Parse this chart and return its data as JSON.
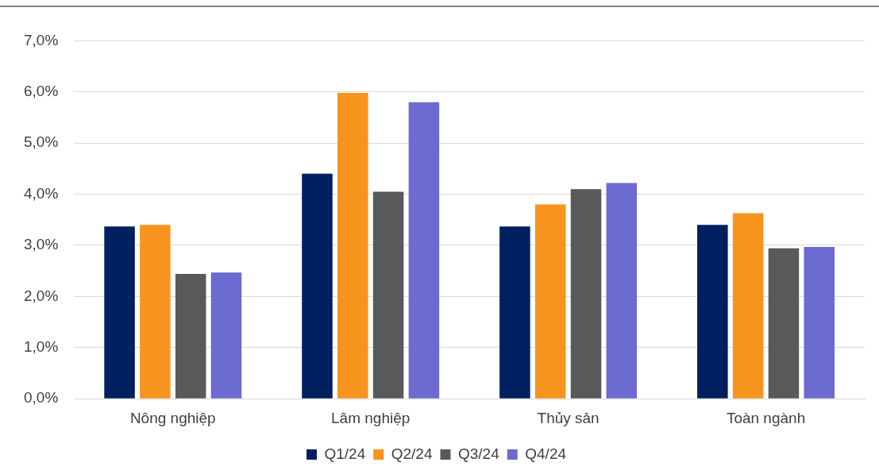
{
  "chart_data": {
    "type": "bar",
    "categories": [
      "Nông nghiệp",
      "Lâm nghiệp",
      "Thủy sản",
      "Toàn ngành"
    ],
    "series": [
      {
        "name": "Q1/24",
        "color": "#002060",
        "values": [
          3.37,
          4.4,
          3.37,
          3.4
        ]
      },
      {
        "name": "Q2/24",
        "color": "#f7941d",
        "values": [
          3.4,
          5.98,
          3.8,
          3.63
        ]
      },
      {
        "name": "Q3/24",
        "color": "#58595b",
        "values": [
          2.44,
          4.05,
          4.1,
          2.94
        ]
      },
      {
        "name": "Q4/24",
        "color": "#6b6bd0",
        "values": [
          2.47,
          5.8,
          4.22,
          2.97
        ]
      }
    ],
    "ylim": [
      0,
      7
    ],
    "yticks": [
      {
        "value": 0,
        "label": "0,0%"
      },
      {
        "value": 1,
        "label": "1,0%"
      },
      {
        "value": 2,
        "label": "2,0%"
      },
      {
        "value": 3,
        "label": "3,0%"
      },
      {
        "value": 4,
        "label": "4,0%"
      },
      {
        "value": 5,
        "label": "5,0%"
      },
      {
        "value": 6,
        "label": "6,0%"
      },
      {
        "value": 7,
        "label": "7,0%"
      }
    ],
    "grid": "y",
    "legend": "bottom"
  }
}
